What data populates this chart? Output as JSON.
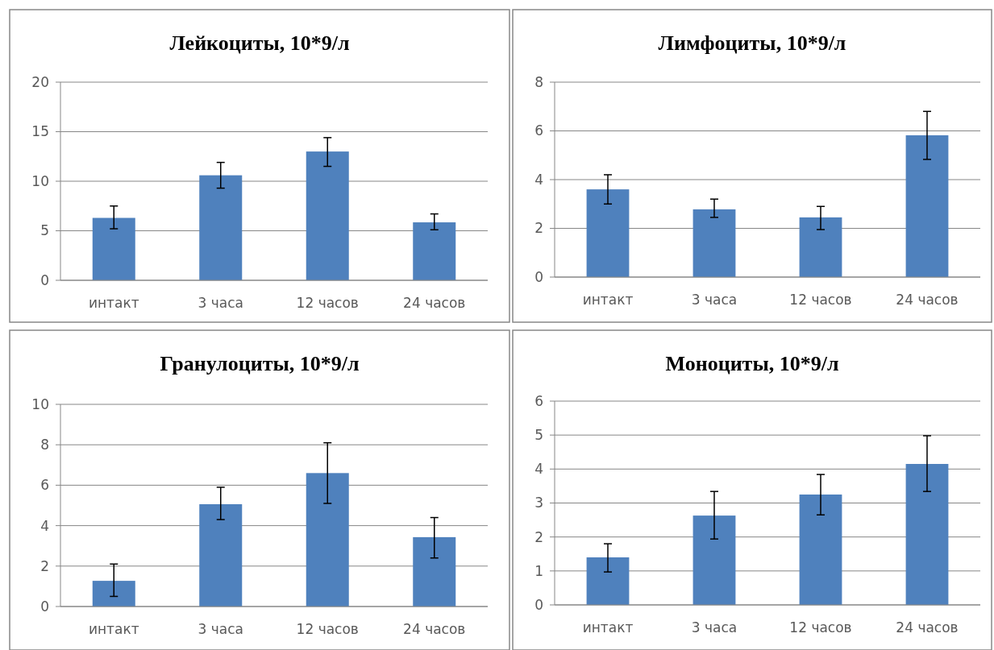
{
  "chart_data": [
    {
      "type": "bar",
      "title": "Лейкоциты, 10*9/л",
      "categories": [
        "интакт",
        "3 часа",
        "12 часов",
        "24 часов"
      ],
      "values": [
        6.3,
        10.6,
        13.0,
        5.85
      ],
      "errors": [
        [
          5.2,
          7.5
        ],
        [
          9.3,
          11.9
        ],
        [
          11.5,
          14.4
        ],
        [
          5.1,
          6.7
        ]
      ],
      "color": "#4f81bd",
      "ylim": [
        0,
        20
      ],
      "yticks": [
        0,
        5,
        10,
        15,
        20
      ],
      "grid": "y"
    },
    {
      "type": "bar",
      "title": "Лимфоциты, 10*9/л",
      "categories": [
        "интакт",
        "3 часа",
        "12 часов",
        "24 часов"
      ],
      "values": [
        3.6,
        2.78,
        2.45,
        5.82
      ],
      "errors": [
        [
          3.0,
          4.2
        ],
        [
          2.45,
          3.2
        ],
        [
          1.95,
          2.9
        ],
        [
          4.83,
          6.8
        ]
      ],
      "color": "#4f81bd",
      "ylim": [
        0,
        8
      ],
      "yticks": [
        0,
        2,
        4,
        6,
        8
      ],
      "grid": "y"
    },
    {
      "type": "bar",
      "title": "Гранулоциты, 10*9/л",
      "categories": [
        "интакт",
        "3 часа",
        "12 часов",
        "24 часов"
      ],
      "values": [
        1.27,
        5.06,
        6.6,
        3.43
      ],
      "errors": [
        [
          0.5,
          2.1
        ],
        [
          4.3,
          5.9
        ],
        [
          5.1,
          8.1
        ],
        [
          2.4,
          4.4
        ]
      ],
      "color": "#4f81bd",
      "ylim": [
        0,
        10
      ],
      "yticks": [
        0,
        2,
        4,
        6,
        8,
        10
      ],
      "grid": "y"
    },
    {
      "type": "bar",
      "title": "Моноциты, 10*9/л",
      "categories": [
        "интакт",
        "3 часа",
        "12 часов",
        "24 часов"
      ],
      "values": [
        1.4,
        2.63,
        3.25,
        4.15
      ],
      "errors": [
        [
          0.97,
          1.8
        ],
        [
          1.94,
          3.34
        ],
        [
          2.65,
          3.84
        ],
        [
          3.34,
          4.98
        ]
      ],
      "color": "#4f81bd",
      "ylim": [
        0,
        6
      ],
      "yticks": [
        0,
        1,
        2,
        3,
        4,
        5,
        6
      ],
      "grid": "y"
    }
  ]
}
